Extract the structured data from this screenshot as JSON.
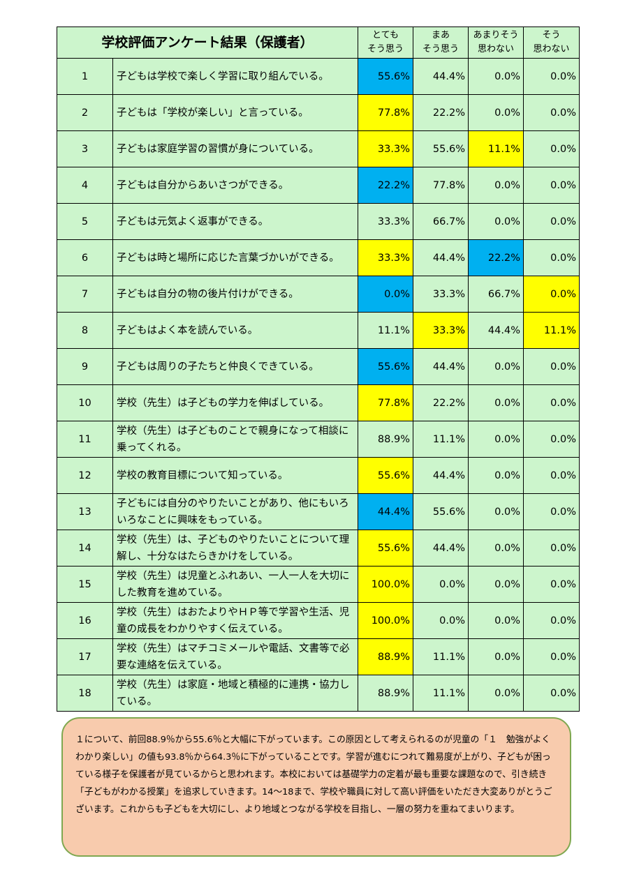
{
  "title": "学校評価アンケート結果（保護者）",
  "headers": [
    [
      "とても",
      "そう思う"
    ],
    [
      "まあ",
      "そう思う"
    ],
    [
      "あまりそう",
      "思わない"
    ],
    [
      "そう",
      "思わない"
    ]
  ],
  "highlight_colors": {
    "blue": "#00b0f0",
    "yellow": "#ffff00",
    "table_bg": "#ccf5cc",
    "comment_bg": "#f8cbad"
  },
  "rows": [
    {
      "no": "1",
      "q": "子どもは学校で楽しく学習に取り組んでいる。",
      "v": [
        "55.6%",
        "44.4%",
        "0.0%",
        "0.0%"
      ],
      "hl": [
        "blue",
        "",
        "",
        ""
      ]
    },
    {
      "no": "2",
      "q": "子どもは「学校が楽しい」と言っている。",
      "v": [
        "77.8%",
        "22.2%",
        "0.0%",
        "0.0%"
      ],
      "hl": [
        "yellow",
        "",
        "",
        ""
      ]
    },
    {
      "no": "3",
      "q": "子どもは家庭学習の習慣が身についている。",
      "v": [
        "33.3%",
        "55.6%",
        "11.1%",
        "0.0%"
      ],
      "hl": [
        "yellow",
        "",
        "yellow",
        ""
      ]
    },
    {
      "no": "4",
      "q": "子どもは自分からあいさつができる。",
      "v": [
        "22.2%",
        "77.8%",
        "0.0%",
        "0.0%"
      ],
      "hl": [
        "blue",
        "",
        "",
        ""
      ]
    },
    {
      "no": "5",
      "q": "子どもは元気よく返事ができる。",
      "v": [
        "33.3%",
        "66.7%",
        "0.0%",
        "0.0%"
      ],
      "hl": [
        "",
        "",
        "",
        ""
      ]
    },
    {
      "no": "6",
      "q": "子どもは時と場所に応じた言葉づかいができる。",
      "v": [
        "33.3%",
        "44.4%",
        "22.2%",
        "0.0%"
      ],
      "hl": [
        "yellow",
        "",
        "blue",
        ""
      ]
    },
    {
      "no": "7",
      "q": "子どもは自分の物の後片付けができる。",
      "v": [
        "0.0%",
        "33.3%",
        "66.7%",
        "0.0%"
      ],
      "hl": [
        "blue",
        "",
        "",
        "yellow"
      ]
    },
    {
      "no": "8",
      "q": "子どもはよく本を読んでいる。",
      "v": [
        "11.1%",
        "33.3%",
        "44.4%",
        "11.1%"
      ],
      "hl": [
        "",
        "yellow",
        "",
        "yellow"
      ]
    },
    {
      "no": "9",
      "q": "子どもは周りの子たちと仲良くできている。",
      "v": [
        "55.6%",
        "44.4%",
        "0.0%",
        "0.0%"
      ],
      "hl": [
        "blue",
        "",
        "",
        ""
      ]
    },
    {
      "no": "10",
      "q": "学校（先生）は子どもの学力を伸ばしている。",
      "v": [
        "77.8%",
        "22.2%",
        "0.0%",
        "0.0%"
      ],
      "hl": [
        "yellow",
        "",
        "",
        ""
      ]
    },
    {
      "no": "11",
      "q": "学校（先生）は子どものことで親身になって相談に乗ってくれる。",
      "v": [
        "88.9%",
        "11.1%",
        "0.0%",
        "0.0%"
      ],
      "hl": [
        "",
        "",
        "",
        ""
      ]
    },
    {
      "no": "12",
      "q": "学校の教育目標について知っている。",
      "v": [
        "55.6%",
        "44.4%",
        "0.0%",
        "0.0%"
      ],
      "hl": [
        "yellow",
        "",
        "",
        ""
      ]
    },
    {
      "no": "13",
      "q": "子どもには自分のやりたいことがあり、他にもいろいろなことに興味をもっている。",
      "v": [
        "44.4%",
        "55.6%",
        "0.0%",
        "0.0%"
      ],
      "hl": [
        "blue",
        "",
        "",
        ""
      ]
    },
    {
      "no": "14",
      "q": "学校（先生）は、子どものやりたいことについて理解し、十分なはたらきかけをしている。",
      "v": [
        "55.6%",
        "44.4%",
        "0.0%",
        "0.0%"
      ],
      "hl": [
        "yellow",
        "",
        "",
        ""
      ]
    },
    {
      "no": "15",
      "q": "学校（先生）は児童とふれあい、一人一人を大切にした教育を進めている。",
      "v": [
        "100.0%",
        "0.0%",
        "0.0%",
        "0.0%"
      ],
      "hl": [
        "yellow",
        "",
        "",
        ""
      ]
    },
    {
      "no": "16",
      "q": "学校（先生）はおたよりやＨＰ等で学習や生活、児童の成長をわかりやすく伝えている。",
      "v": [
        "100.0%",
        "0.0%",
        "0.0%",
        "0.0%"
      ],
      "hl": [
        "yellow",
        "",
        "",
        ""
      ]
    },
    {
      "no": "17",
      "q": "学校（先生）はマチコミメールや電話、文書等で必要な連絡を伝えている。",
      "v": [
        "88.9%",
        "11.1%",
        "0.0%",
        "0.0%"
      ],
      "hl": [
        "yellow",
        "",
        "",
        ""
      ]
    },
    {
      "no": "18",
      "q": "学校（先生）は家庭・地域と積極的に連携・協力している。",
      "v": [
        "88.9%",
        "11.1%",
        "0.0%",
        "0.0%"
      ],
      "hl": [
        "",
        "",
        "",
        ""
      ]
    }
  ],
  "comment": "１について、前回88.9％から55.6％と大幅に下がっています。この原因として考えられるのが児童の「１　勉強がよくわかり楽しい」の値も93.8％から64.3％に下がっていることです。学習が進むにつれて難易度が上がり、子どもが困っている様子を保護者が見ているからと思われます。本校においては基礎学力の定着が最も重要な課題なので、引き続き「子どもがわかる授業」を追求していきます。14〜18まで、学校や職員に対して高い評価をいただき大変ありがとうございます。これからも子どもを大切にし、より地域とつながる学校を目指し、一層の努力を重ねてまいります。"
}
